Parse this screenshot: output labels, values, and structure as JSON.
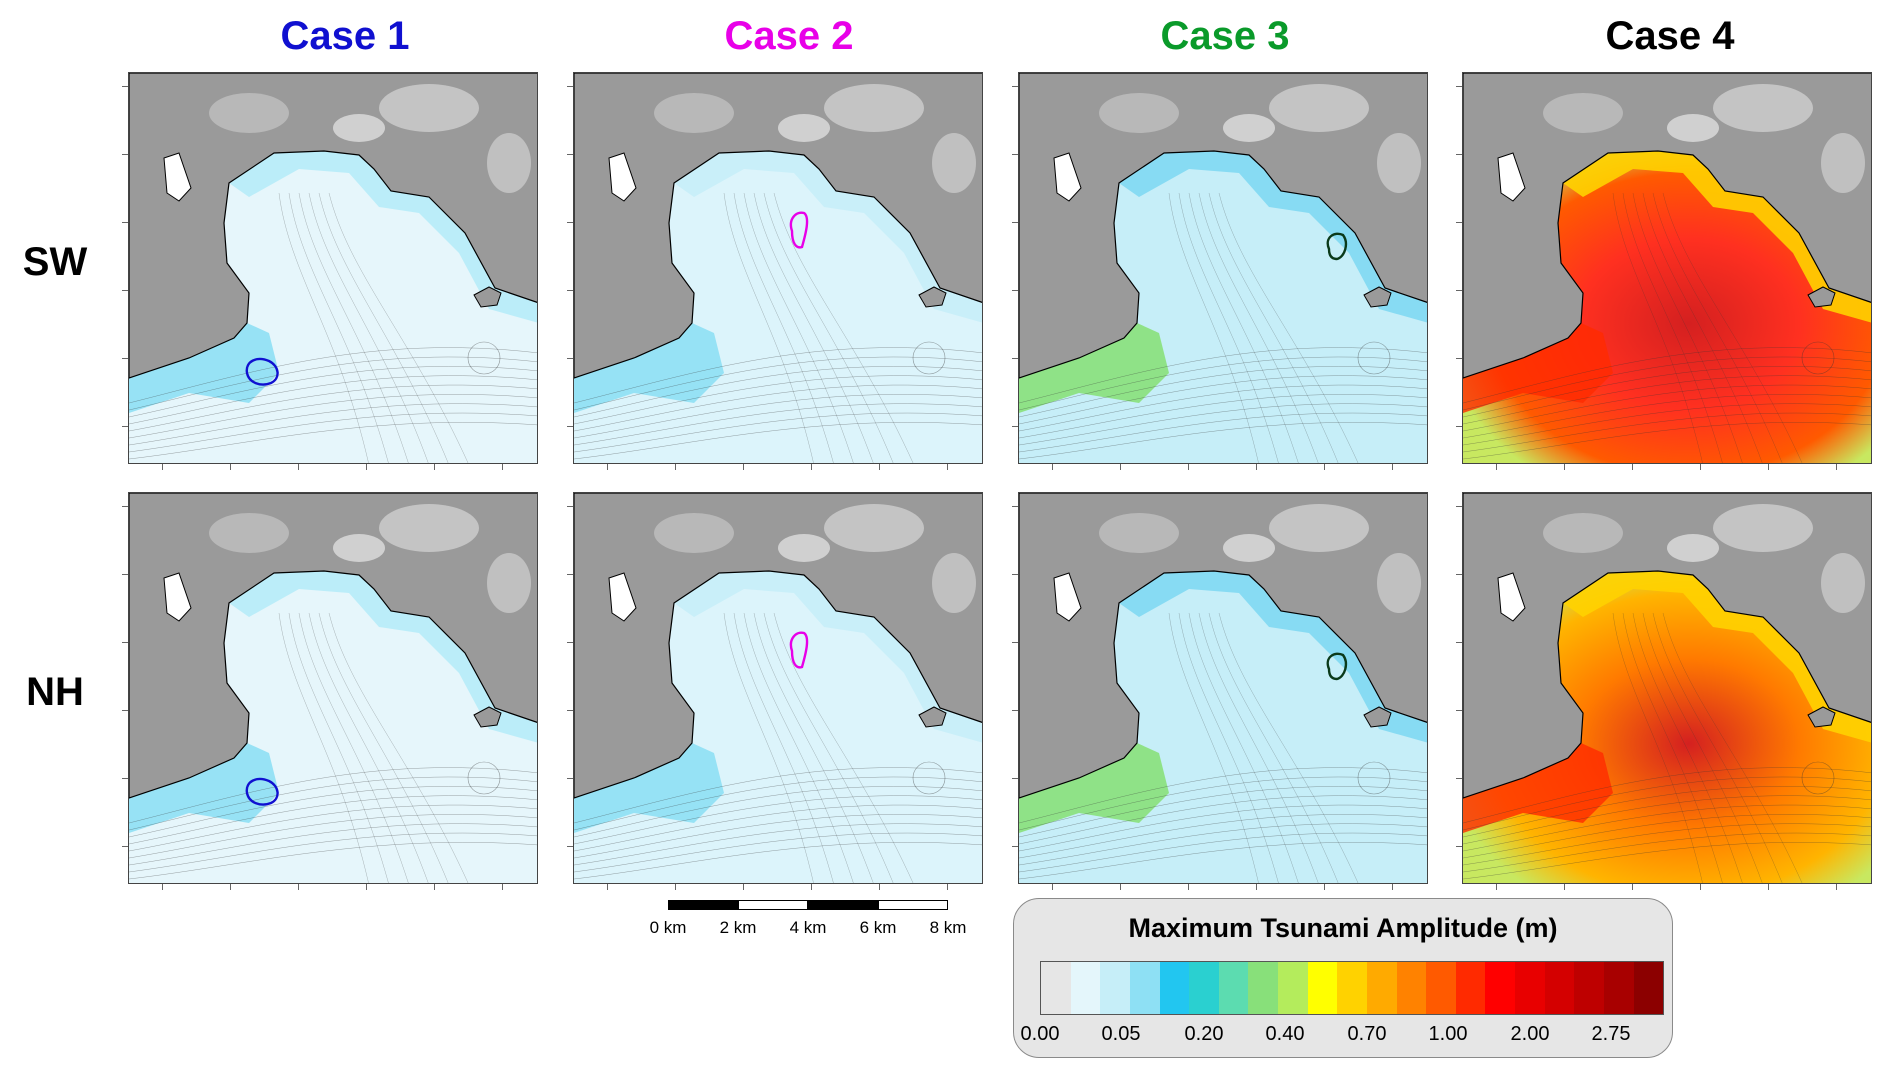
{
  "columns": [
    {
      "title": "Case 1",
      "color": "#1010d0"
    },
    {
      "title": "Case 2",
      "color": "#e800e8"
    },
    {
      "title": "Case 3",
      "color": "#0a9a2a"
    },
    {
      "title": "Case 4",
      "color": "#000000"
    }
  ],
  "rows": [
    {
      "label": "SW"
    },
    {
      "label": "NH"
    }
  ],
  "scale_bar": {
    "labels": [
      "0 km",
      "2 km",
      "4 km",
      "6 km",
      "8 km"
    ]
  },
  "legend": {
    "title": "Maximum Tsunami Amplitude (m)",
    "tick_labels": [
      "0.00",
      "0.05",
      "0.20",
      "0.40",
      "0.70",
      "1.00",
      "2.00",
      "2.75"
    ],
    "colors": [
      "#e6e6e6",
      "#e4f6fb",
      "#c6eef8",
      "#8ee0f4",
      "#22c6f0",
      "#2ad0d0",
      "#5cdcb0",
      "#88e07a",
      "#b4ec5c",
      "#ffff00",
      "#ffd200",
      "#ffaa00",
      "#ff8200",
      "#ff5a00",
      "#ff2a00",
      "#ff0000",
      "#e80000",
      "#d40000",
      "#be0000",
      "#a80000",
      "#8c0000"
    ]
  }
}
